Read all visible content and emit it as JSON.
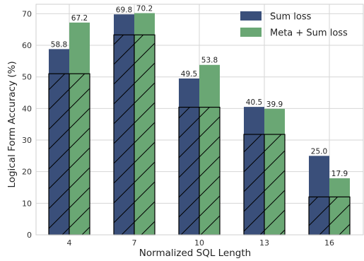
{
  "chart_data": {
    "type": "bar",
    "xlabel": "Normalized SQL Length",
    "ylabel": "Logical Form Accuracy (%)",
    "ylim": [
      0,
      73
    ],
    "yticks": [
      0,
      10,
      20,
      30,
      40,
      50,
      60,
      70
    ],
    "categories": [
      "4",
      "7",
      "10",
      "13",
      "16"
    ],
    "series": [
      {
        "name": "Sum loss",
        "values": [
          58.8,
          69.8,
          49.5,
          40.5,
          25.0
        ],
        "labels": [
          "58.8",
          "69.8",
          "49.5",
          "40.5",
          "25.0"
        ],
        "hatched_values": [
          51,
          63.3,
          40.4,
          31.8,
          12
        ],
        "color": "#3a4f7a"
      },
      {
        "name": "Meta + Sum loss",
        "values": [
          67.2,
          70.2,
          53.8,
          39.9,
          17.9
        ],
        "labels": [
          "67.2",
          "70.2",
          "53.8",
          "39.9",
          "17.9"
        ],
        "hatched_values": [
          51,
          63.3,
          40.4,
          31.8,
          12
        ],
        "color": "#6aa774"
      }
    ],
    "grid": true,
    "legend_position": "top-right"
  }
}
